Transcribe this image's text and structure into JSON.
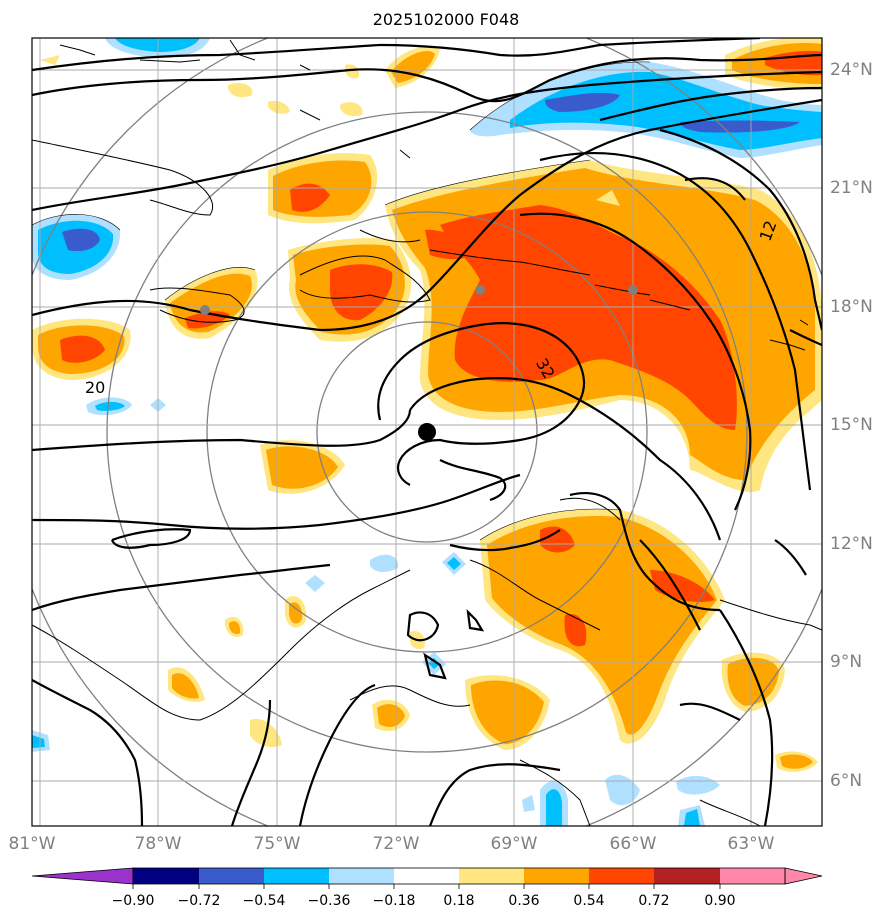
{
  "title": "2025102000 F048",
  "lon_labels": [
    "81°W",
    "78°W",
    "75°W",
    "72°W",
    "69°W",
    "66°W",
    "63°W"
  ],
  "lat_labels": [
    "24°N",
    "21°N",
    "18°N",
    "15°N",
    "12°N",
    "9°N",
    "6°N"
  ],
  "contour_labels": [
    "12",
    "20",
    "32"
  ],
  "colorbar": {
    "ticks": [
      "−0.90",
      "−0.72",
      "−0.54",
      "−0.36",
      "−0.18",
      "0.18",
      "0.36",
      "0.54",
      "0.72",
      "0.90"
    ],
    "colors": [
      "#9933cc",
      "#000080",
      "#3a5bcc",
      "#00bfff",
      "#b0e0ff",
      "#ffffff",
      "#ffe680",
      "#ffa500",
      "#ff4500",
      "#b22222",
      "#ff88aa"
    ]
  },
  "storm_center": {
    "lon": "71.1°W",
    "lat": "14.8°N"
  }
}
